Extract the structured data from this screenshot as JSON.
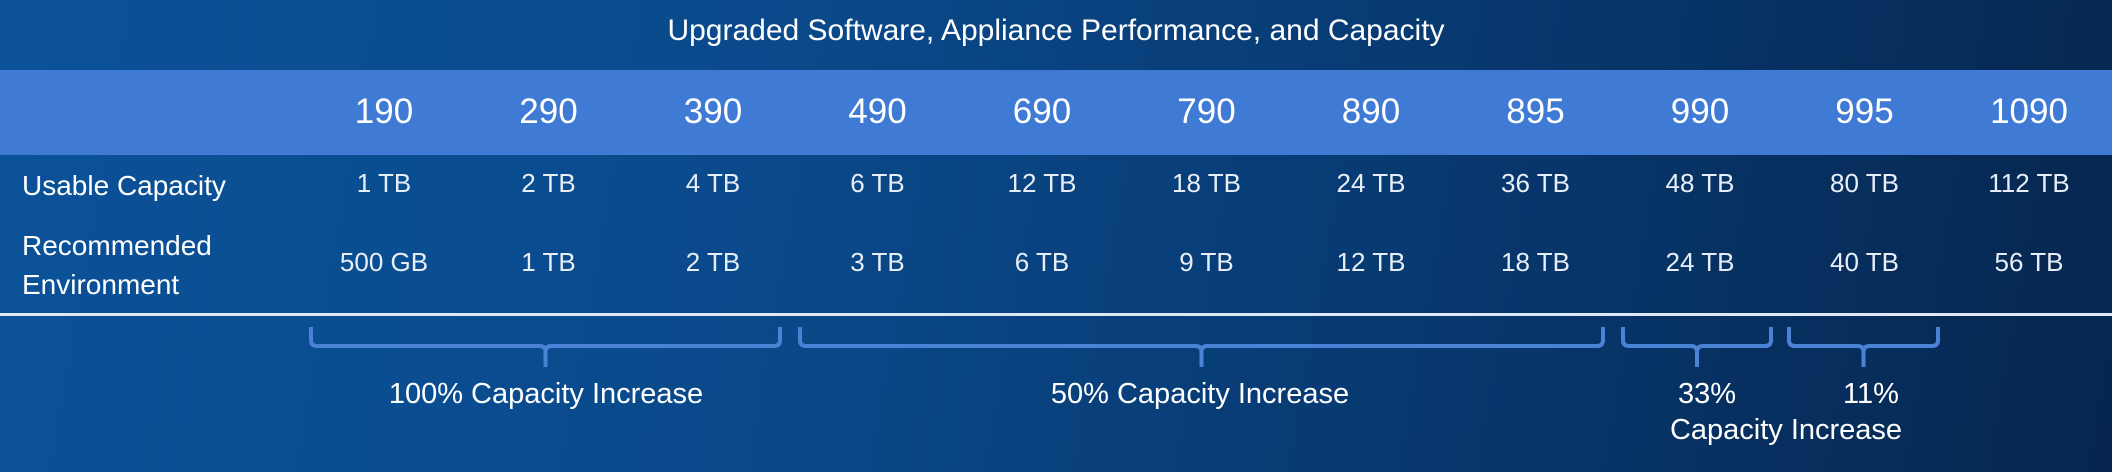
{
  "title": "Upgraded Software, Appliance Performance, and Capacity",
  "table": {
    "columns": [
      "190",
      "290",
      "390",
      "490",
      "690",
      "790",
      "890",
      "895",
      "990",
      "995",
      "1090"
    ],
    "rows": [
      {
        "label": "Usable Capacity",
        "values": [
          "1 TB",
          "2 TB",
          "4 TB",
          "6 TB",
          "12 TB",
          "18 TB",
          "24 TB",
          "36 TB",
          "48 TB",
          "80 TB",
          "112 TB"
        ]
      },
      {
        "label": "Recommended Environment",
        "values": [
          "500 GB",
          "1 TB",
          "2 TB",
          "3 TB",
          "6 TB",
          "9 TB",
          "12 TB",
          "18 TB",
          "24 TB",
          "40 TB",
          "56 TB"
        ]
      }
    ]
  },
  "brackets": [
    {
      "label": "100% Capacity Increase"
    },
    {
      "label": "50% Capacity Increase"
    },
    {
      "label": "33%"
    },
    {
      "label": "11%"
    }
  ],
  "shared_label": "Capacity Increase"
}
